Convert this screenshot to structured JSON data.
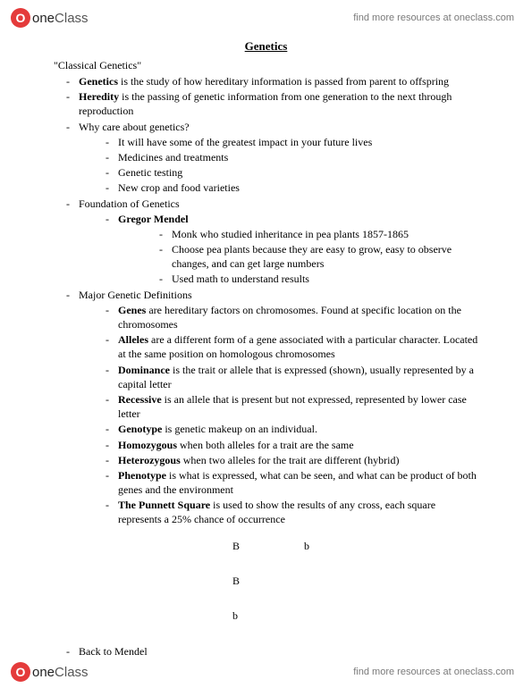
{
  "brand": {
    "circle_letter": "O",
    "word1": "one",
    "word2": "Class"
  },
  "header_link": "find more resources at oneclass.com",
  "footer_link": "find more resources at oneclass.com",
  "title": "Genetics",
  "section_heading": "\"Classical Genetics\"",
  "l1": {
    "i0a": "Genetics",
    "i0b": " is the study of how hereditary information is passed from parent to offspring",
    "i1a": "Heredity",
    "i1b": " is the passing of genetic information from one generation to the next through reproduction",
    "i2": "Why care about genetics?",
    "i3": "Foundation of Genetics",
    "i4": "Major Genetic Definitions",
    "i5": "Back to Mendel"
  },
  "why": {
    "a": "It will have some of the greatest impact in your future lives",
    "b": "Medicines and treatments",
    "c": "Genetic testing",
    "d": "New crop and food varieties"
  },
  "foundation": {
    "a": "Gregor Mendel",
    "m1": "Monk who studied inheritance in pea plants 1857-1865",
    "m2": "Choose pea plants because they are easy to grow, easy to observe changes, and can get large numbers",
    "m3": "Used math to understand results"
  },
  "defs": {
    "d1a": "Genes",
    "d1b": " are hereditary factors on chromosomes. Found at specific location on the chromosomes",
    "d2a": "Alleles",
    "d2b": " are a different form of a gene associated with a particular character. Located at the same position on homologous chromosomes",
    "d3a": "Dominance",
    "d3b": " is the trait or allele that is expressed (shown), usually represented by a capital letter",
    "d4a": "Recessive",
    "d4b": " is an allele that is present but not expressed, represented by lower case letter",
    "d5a": "Genotype",
    "d5b": " is genetic makeup on an individual.",
    "d6a": "Homozygous",
    "d6b": " when both alleles for a trait are the same",
    "d7a": "Heterozygous",
    "d7b": " when two alleles for the trait are different (hybrid)",
    "d8a": "Phenotype",
    "d8b": " is what is expressed, what can be seen, and what can be product of both genes and the environment",
    "d9a": "The Punnett Square",
    "d9b": " is used to show the results of any cross, each square represents a 25% chance of occurrence"
  },
  "punnett": {
    "B": "B",
    "b": "b"
  }
}
